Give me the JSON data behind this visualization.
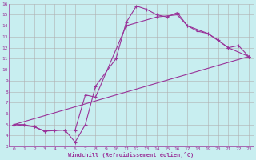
{
  "xlabel": "Windchill (Refroidissement éolien,°C)",
  "bg_color": "#c8eef0",
  "line_color": "#993399",
  "grid_color": "#b0b0b0",
  "xlim": [
    -0.5,
    23.5
  ],
  "ylim": [
    3,
    16
  ],
  "xticks": [
    0,
    1,
    2,
    3,
    4,
    5,
    6,
    7,
    8,
    9,
    10,
    11,
    12,
    13,
    14,
    15,
    16,
    17,
    18,
    19,
    20,
    21,
    22,
    23
  ],
  "yticks": [
    3,
    4,
    5,
    6,
    7,
    8,
    9,
    10,
    11,
    12,
    13,
    14,
    15,
    16
  ],
  "curve1_x": [
    0,
    1,
    2,
    3,
    4,
    5,
    6,
    7,
    8,
    10,
    11,
    12,
    13,
    14,
    15,
    16,
    17,
    18,
    19,
    20,
    21,
    22,
    23
  ],
  "curve1_y": [
    5.0,
    5.0,
    4.8,
    4.4,
    4.5,
    4.5,
    3.4,
    5.0,
    8.5,
    11.0,
    14.3,
    15.8,
    15.5,
    15.0,
    14.8,
    15.2,
    14.0,
    13.5,
    13.3,
    12.7,
    12.0,
    12.2,
    11.2
  ],
  "curve2_x": [
    0,
    2,
    3,
    5,
    6,
    7,
    8,
    11,
    14,
    16,
    17,
    19,
    21,
    23
  ],
  "curve2_y": [
    5.0,
    4.8,
    4.4,
    4.5,
    4.5,
    7.7,
    7.5,
    14.0,
    14.8,
    15.0,
    14.0,
    13.3,
    12.0,
    11.2
  ],
  "curve3_x": [
    0,
    23
  ],
  "curve3_y": [
    5.0,
    11.2
  ]
}
